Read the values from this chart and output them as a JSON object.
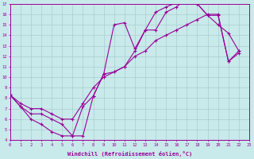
{
  "xlabel": "Windchill (Refroidissement éolien,°C)",
  "bg_color": "#c8eaea",
  "line_color": "#990099",
  "grid_color": "#aacccc",
  "xmin": 0,
  "xmax": 23,
  "ymin": 4,
  "ymax": 17,
  "curve1_x": [
    0,
    1,
    2,
    3,
    4,
    5,
    6,
    7,
    8,
    9,
    10,
    11,
    12,
    13,
    14,
    15,
    16,
    17,
    18,
    19,
    20,
    21,
    22
  ],
  "curve1_y": [
    8.3,
    7.2,
    6.0,
    5.5,
    4.8,
    4.4,
    4.4,
    7.2,
    8.2,
    10.3,
    15.0,
    15.2,
    12.7,
    14.5,
    16.2,
    16.7,
    17.1,
    17.5,
    17.0,
    15.9,
    15.0,
    14.2,
    12.5
  ],
  "curve2_x": [
    0,
    1,
    2,
    3,
    4,
    5,
    6,
    7,
    8,
    9,
    10,
    11,
    12,
    13,
    14,
    15,
    16,
    17,
    18,
    19,
    20,
    21,
    22
  ],
  "curve2_y": [
    8.3,
    7.5,
    7.0,
    7.0,
    6.5,
    6.0,
    6.0,
    7.5,
    9.0,
    10.0,
    10.5,
    11.0,
    12.0,
    12.5,
    13.5,
    14.0,
    14.5,
    15.0,
    15.5,
    16.0,
    16.0,
    11.5,
    12.3
  ],
  "curve3_x": [
    0,
    1,
    2,
    3,
    4,
    5,
    6,
    7,
    8,
    9,
    10,
    11,
    12,
    13,
    14,
    15,
    16,
    17,
    18,
    19,
    20,
    21,
    22
  ],
  "curve3_y": [
    8.3,
    7.2,
    6.5,
    6.5,
    6.0,
    5.5,
    4.4,
    4.4,
    8.2,
    10.3,
    10.5,
    11.0,
    12.5,
    14.5,
    14.5,
    16.2,
    16.7,
    17.5,
    17.0,
    15.9,
    15.9,
    11.5,
    12.5
  ]
}
